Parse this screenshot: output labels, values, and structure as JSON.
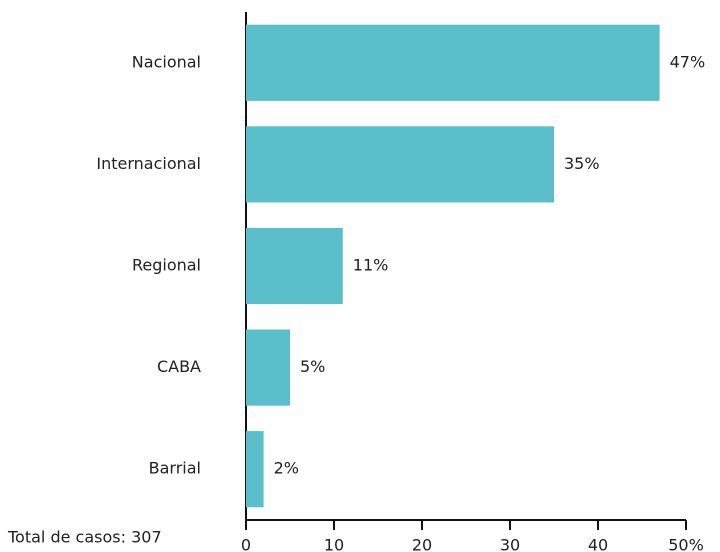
{
  "chart_data": {
    "type": "bar",
    "orientation": "horizontal",
    "categories": [
      "Nacional",
      "Internacional",
      "Regional",
      "CABA",
      "Barrial"
    ],
    "values": [
      47,
      35,
      11,
      5,
      2
    ],
    "value_labels": [
      "47%",
      "35%",
      "11%",
      "5%",
      "2%"
    ],
    "color": "#5bbfcb",
    "xlim": [
      0,
      50
    ],
    "xticks": [
      0,
      10,
      20,
      30,
      40,
      {
        "value": 50,
        "label": "50%"
      }
    ],
    "annotation": "Total de casos: 307",
    "grid": false
  }
}
